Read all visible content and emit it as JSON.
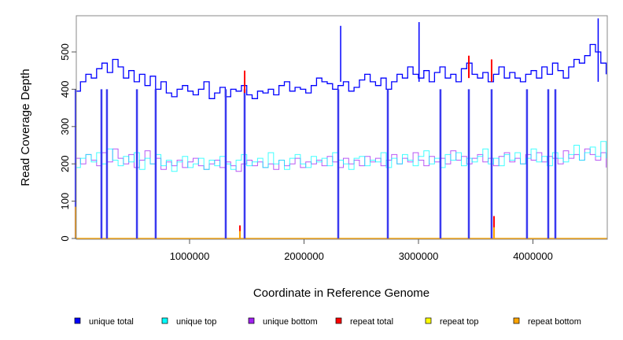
{
  "chart_data": {
    "type": "line",
    "xlabel": "Coordinate in Reference Genome",
    "ylabel": "Read Coverage Depth",
    "xlim": [
      0,
      4640000
    ],
    "ylim": [
      0,
      595
    ],
    "x_ticks": [
      1000000,
      2000000,
      3000000,
      4000000
    ],
    "x_tick_labels": [
      "1000000",
      "2000000",
      "3000000",
      "4000000"
    ],
    "y_ticks": [
      0,
      100,
      200,
      300,
      400,
      500
    ],
    "y_tick_labels": [
      "0",
      "100",
      "200",
      "300",
      "400",
      "500"
    ],
    "x_range": [
      0,
      4640000
    ],
    "series": [
      {
        "name": "unique total",
        "color": "#0000ff",
        "values": [
          395,
          420,
          440,
          430,
          455,
          470,
          445,
          480,
          460,
          430,
          450,
          420,
          440,
          410,
          435,
          400,
          420,
          390,
          380,
          400,
          410,
          395,
          385,
          400,
          420,
          375,
          390,
          405,
          380,
          400,
          395,
          410,
          385,
          375,
          395,
          390,
          400,
          385,
          410,
          420,
          395,
          405,
          400,
          390,
          410,
          430,
          420,
          415,
          400,
          410,
          420,
          395,
          405,
          425,
          440,
          420,
          410,
          430,
          400,
          420,
          440,
          430,
          460,
          440,
          430,
          450,
          420,
          445,
          460,
          430,
          440,
          420,
          455,
          470,
          440,
          430,
          445,
          420,
          440,
          460,
          430,
          445,
          430,
          420,
          440,
          450,
          430,
          460,
          440,
          470,
          450,
          430,
          460,
          480,
          470,
          490,
          520,
          500,
          470,
          440
        ]
      },
      {
        "name": "unique top",
        "color": "#00ffff",
        "values": [
          190,
          215,
          225,
          205,
          230,
          200,
          240,
          210,
          195,
          220,
          205,
          230,
          185,
          215,
          200,
          225,
          195,
          210,
          180,
          205,
          220,
          190,
          200,
          215,
          185,
          210,
          195,
          220,
          200,
          185,
          210,
          225,
          195,
          205,
          215,
          190,
          230,
          200,
          210,
          185,
          215,
          225,
          200,
          190,
          220,
          205,
          215,
          195,
          230,
          210,
          200,
          185,
          215,
          220,
          195,
          210,
          205,
          230,
          190,
          215,
          200,
          225,
          210,
          195,
          220,
          235,
          200,
          215,
          190,
          225,
          210,
          230,
          195,
          215,
          205,
          220,
          240,
          200,
          215,
          195,
          225,
          210,
          230,
          200,
          215,
          240,
          205,
          220,
          195,
          230,
          215,
          205,
          225,
          250,
          210,
          230,
          245,
          220,
          260,
          215
        ]
      },
      {
        "name": "unique bottom",
        "color": "#a020f0",
        "values": [
          215,
          200,
          225,
          210,
          195,
          230,
          205,
          240,
          215,
          200,
          225,
          190,
          210,
          235,
          200,
          215,
          185,
          205,
          195,
          210,
          190,
          205,
          215,
          195,
          185,
          200,
          210,
          190,
          205,
          195,
          180,
          200,
          210,
          195,
          205,
          190,
          200,
          185,
          210,
          195,
          200,
          215,
          190,
          205,
          200,
          210,
          195,
          220,
          205,
          190,
          215,
          200,
          210,
          195,
          220,
          205,
          215,
          195,
          210,
          225,
          200,
          215,
          205,
          230,
          210,
          195,
          220,
          205,
          215,
          200,
          235,
          210,
          220,
          200,
          215,
          225,
          205,
          215,
          195,
          220,
          230,
          205,
          215,
          200,
          225,
          210,
          230,
          205,
          220,
          215,
          200,
          235,
          215,
          225,
          210,
          240,
          225,
          210,
          230,
          190
        ]
      },
      {
        "name": "repeat total",
        "color": "#ff0000",
        "values": []
      },
      {
        "name": "repeat top",
        "color": "#ffff00",
        "values": []
      },
      {
        "name": "repeat bottom",
        "color": "#ffa500",
        "values": []
      }
    ],
    "dropouts_unique_total": [
      5000,
      230000,
      278000,
      540000,
      704000,
      1316000,
      1481000,
      2299000,
      2732000,
      3192000,
      3440000,
      3639000,
      3948000,
      4134000,
      4196000
    ],
    "spikes_unique_total": [
      [
        2320000,
        570
      ],
      [
        3005000,
        580
      ],
      [
        4570000,
        590
      ]
    ],
    "repeat_spikes": [
      {
        "series": "repeat total",
        "x": 1440000,
        "y": 35
      },
      {
        "series": "repeat total",
        "x": 1481000,
        "y": 450
      },
      {
        "series": "repeat total",
        "x": 3440000,
        "y": 490
      },
      {
        "series": "repeat total",
        "x": 3639000,
        "y": 480
      },
      {
        "series": "repeat bottom",
        "x": 5000,
        "y": 85
      },
      {
        "series": "repeat total",
        "x": 3660000,
        "y": 60
      },
      {
        "series": "repeat bottom",
        "x": 3660000,
        "y": 30
      },
      {
        "series": "repeat bottom",
        "x": 1440000,
        "y": 20
      }
    ],
    "grid": false,
    "legend_placement": "bottom"
  }
}
